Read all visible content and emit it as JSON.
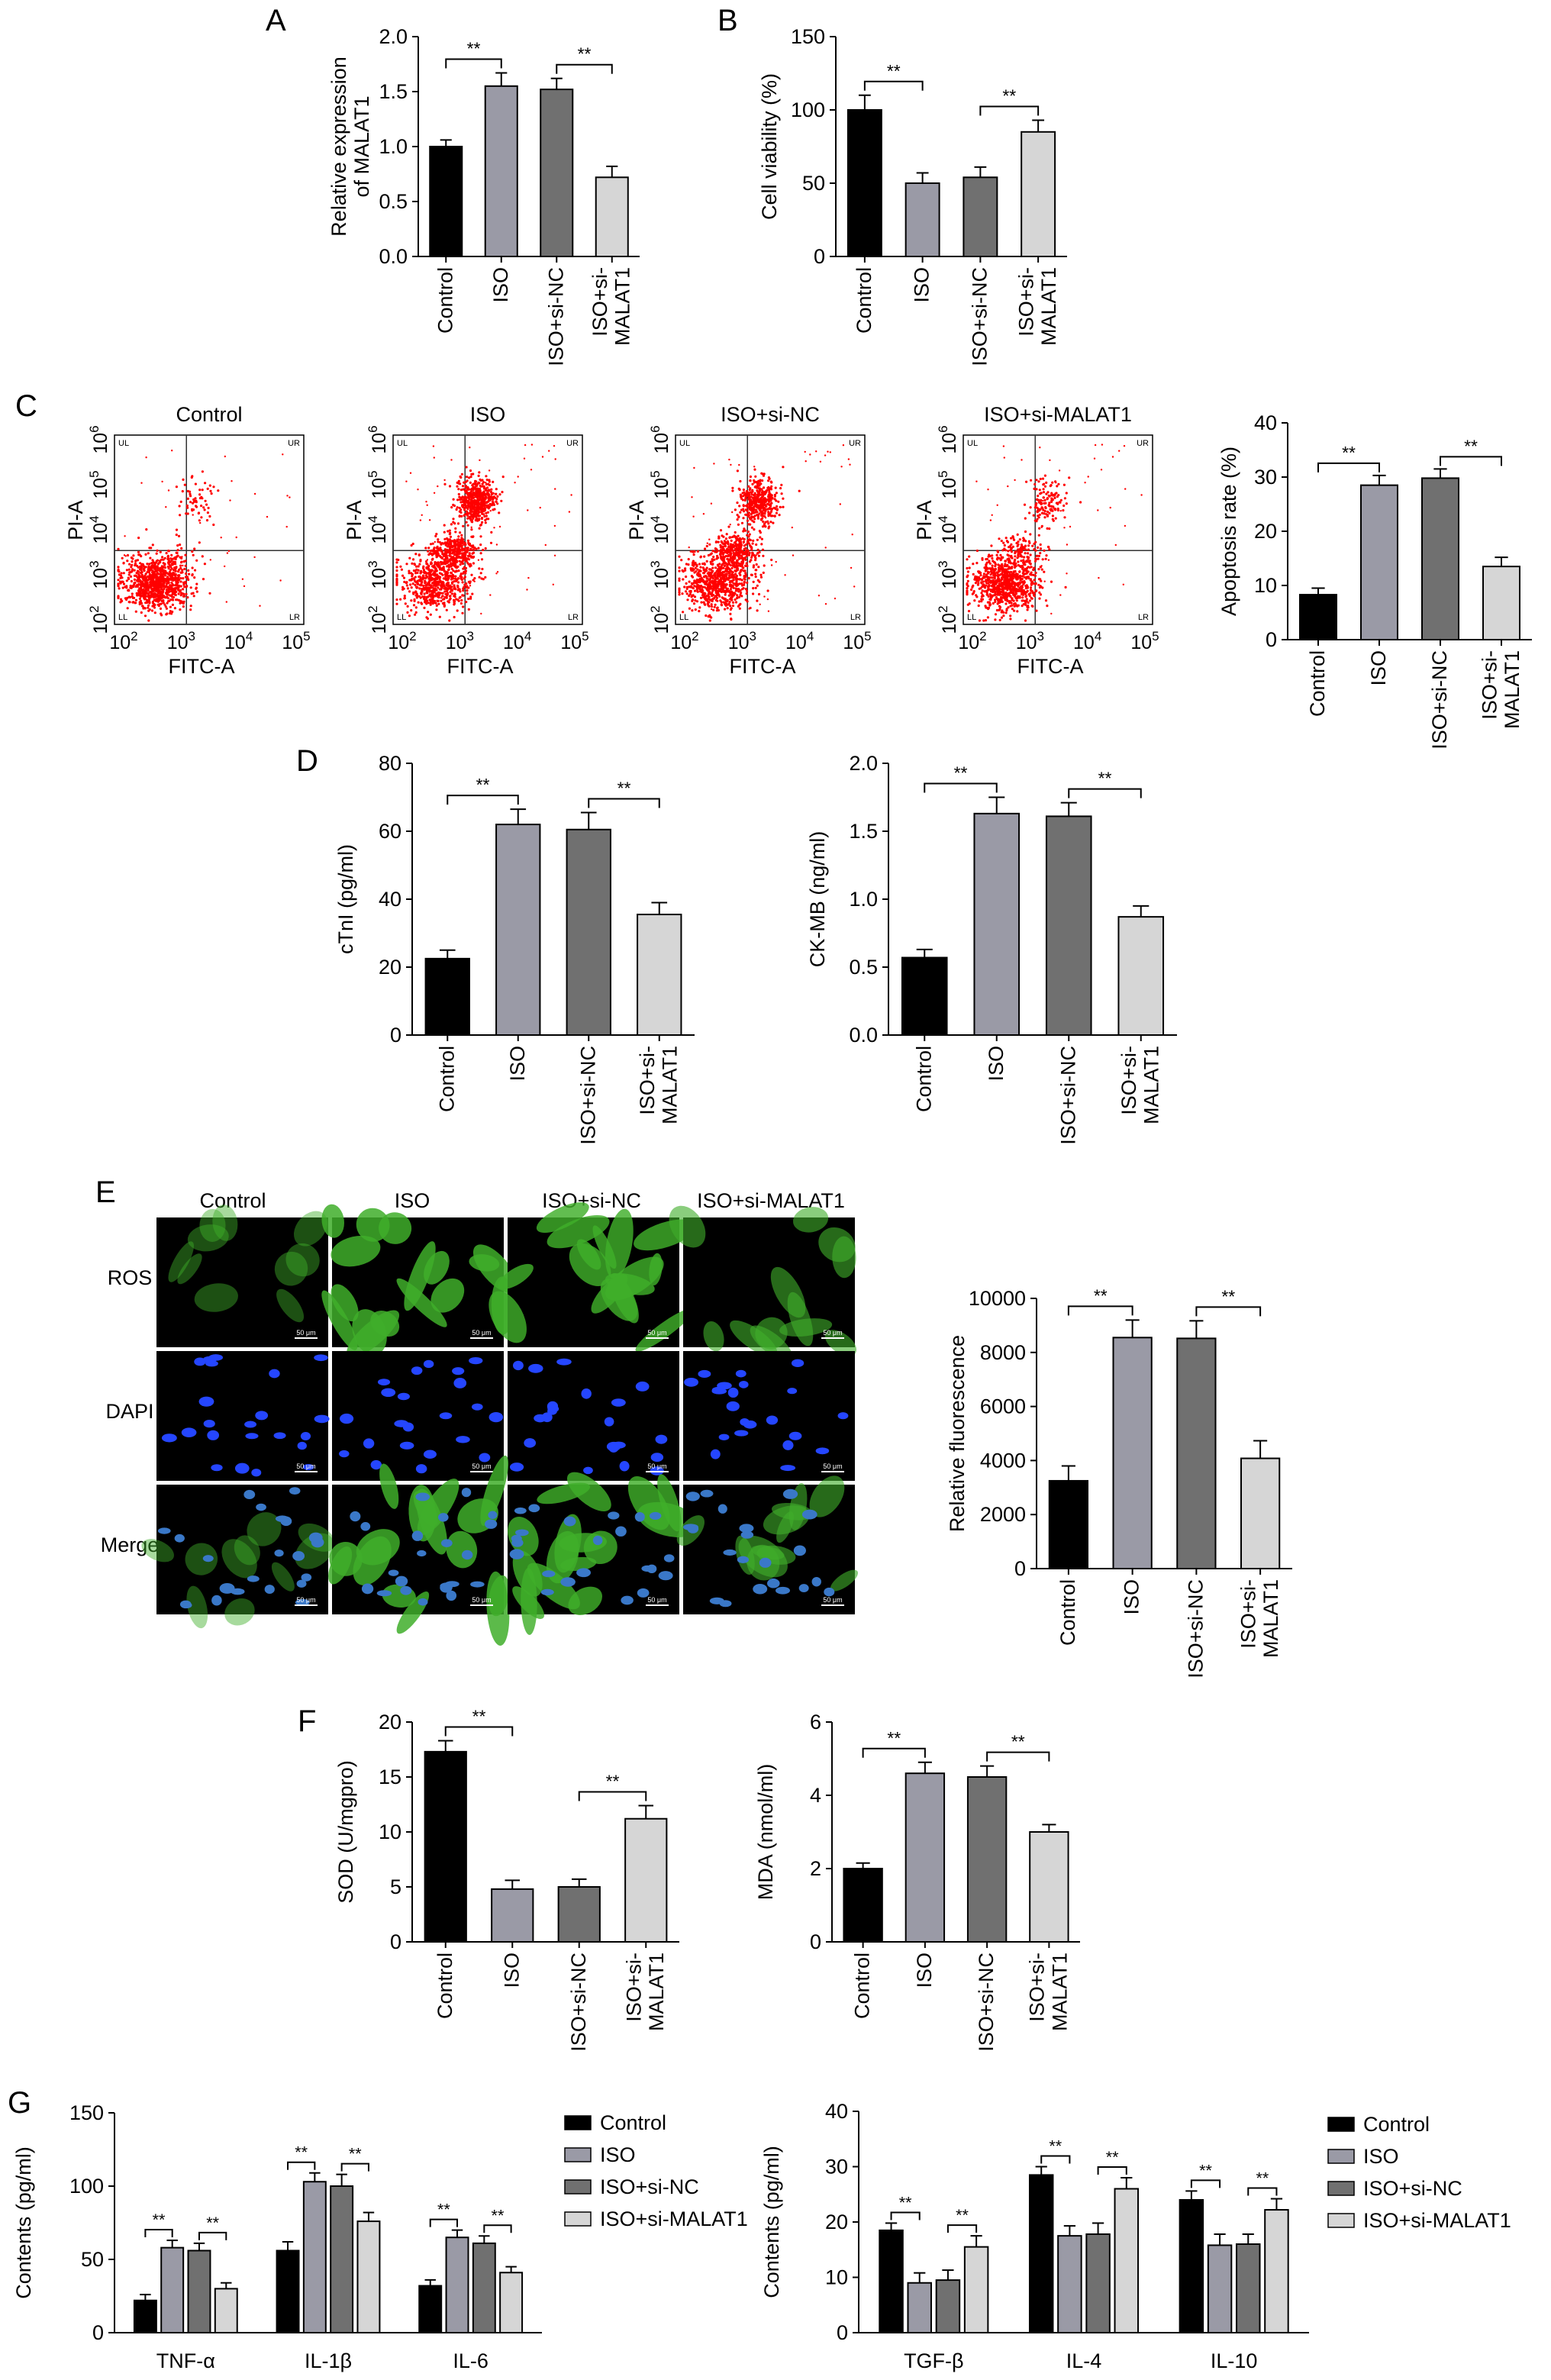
{
  "colors": {
    "control": "#000000",
    "iso": "#9a9aa6",
    "iso_si_nc": "#707070",
    "iso_si_malat1": "#d6d6d6",
    "dot": "#ff0000"
  },
  "labels": {
    "A": "A",
    "B": "B",
    "C": "C",
    "D": "D",
    "E": "E",
    "F": "F",
    "G": "G",
    "sig": "**",
    "groups": [
      "Control",
      "ISO",
      "ISO+si-NC",
      "ISO+si-MALAT1"
    ],
    "group_ticks": [
      "Control",
      "ISO",
      "ISO+si-NC",
      "ISO+si-\nMALAT1"
    ],
    "flow": {
      "x_label": "FITC-A",
      "y_label": "PI-A",
      "x_ticks": [
        "10^2",
        "10^3",
        "10^4",
        "10^5"
      ],
      "y_ticks": [
        "10^2",
        "10^3",
        "10^4",
        "10^5",
        "10^6"
      ],
      "quadrants": [
        "UL",
        "UR",
        "LL",
        "LR"
      ]
    },
    "microscopy": {
      "rows": [
        "ROS",
        "DAPI",
        "Merge"
      ],
      "scale": "50 μm"
    }
  },
  "chart_data": [
    {
      "id": "A",
      "type": "bar",
      "categories": [
        "Control",
        "ISO",
        "ISO+si-NC",
        "ISO+si-\nMALAT1"
      ],
      "values": [
        1.0,
        1.55,
        1.52,
        0.72
      ],
      "errors": [
        0.06,
        0.12,
        0.1,
        0.1
      ],
      "ylabel": "Relative expression\nof MALAT1",
      "ylim": [
        0,
        2.0
      ],
      "yticks": [
        "0.0",
        "0.5",
        "1.0",
        "1.5",
        "2.0"
      ],
      "sig_pairs": [
        [
          0,
          1
        ],
        [
          2,
          3
        ]
      ]
    },
    {
      "id": "B",
      "type": "bar",
      "categories": [
        "Control",
        "ISO",
        "ISO+si-NC",
        "ISO+si-\nMALAT1"
      ],
      "values": [
        100,
        50,
        54,
        85
      ],
      "errors": [
        10,
        7,
        7,
        8
      ],
      "ylabel": "Cell viability (%)",
      "ylim": [
        0,
        150
      ],
      "yticks": [
        "0",
        "50",
        "100",
        "150"
      ],
      "sig_pairs": [
        [
          0,
          1
        ],
        [
          2,
          3
        ]
      ]
    },
    {
      "id": "C",
      "type": "bar",
      "categories": [
        "Control",
        "ISO",
        "ISO+si-NC",
        "ISO+si-\nMALAT1"
      ],
      "values": [
        8.3,
        28.5,
        29.8,
        13.5
      ],
      "errors": [
        1.2,
        1.8,
        1.7,
        1.7
      ],
      "ylabel": "Apoptosis rate (%)",
      "ylim": [
        0,
        40
      ],
      "yticks": [
        "0",
        "10",
        "20",
        "30",
        "40"
      ],
      "sig_pairs": [
        [
          0,
          1
        ],
        [
          2,
          3
        ]
      ]
    },
    {
      "id": "D1",
      "type": "bar",
      "categories": [
        "Control",
        "ISO",
        "ISO+si-NC",
        "ISO+si-\nMALAT1"
      ],
      "values": [
        22.5,
        62,
        60.5,
        35.5
      ],
      "errors": [
        2.5,
        4.5,
        5,
        3.5
      ],
      "ylabel": "cTnI (pg/ml)",
      "ylim": [
        0,
        80
      ],
      "yticks": [
        "0",
        "20",
        "40",
        "60",
        "80"
      ],
      "sig_pairs": [
        [
          0,
          1
        ],
        [
          2,
          3
        ]
      ]
    },
    {
      "id": "D2",
      "type": "bar",
      "categories": [
        "Control",
        "ISO",
        "ISO+si-NC",
        "ISO+si-\nMALAT1"
      ],
      "values": [
        0.57,
        1.63,
        1.61,
        0.87
      ],
      "errors": [
        0.06,
        0.12,
        0.1,
        0.08
      ],
      "ylabel": "CK-MB (ng/ml)",
      "ylim": [
        0,
        2.0
      ],
      "yticks": [
        "0.0",
        "0.5",
        "1.0",
        "1.5",
        "2.0"
      ],
      "sig_pairs": [
        [
          0,
          1
        ],
        [
          2,
          3
        ]
      ]
    },
    {
      "id": "E",
      "type": "bar",
      "categories": [
        "Control",
        "ISO",
        "ISO+si-NC",
        "ISO+si-\nMALAT1"
      ],
      "values": [
        3250,
        8550,
        8520,
        4080
      ],
      "errors": [
        550,
        650,
        650,
        650
      ],
      "ylabel": "Relative fluorescence",
      "ylim": [
        0,
        10000
      ],
      "yticks": [
        "0",
        "2000",
        "4000",
        "6000",
        "8000",
        "10000"
      ],
      "sig_pairs": [
        [
          0,
          1
        ],
        [
          2,
          3
        ]
      ]
    },
    {
      "id": "F1",
      "type": "bar",
      "categories": [
        "Control",
        "ISO",
        "ISO+si-NC",
        "ISO+si-\nMALAT1"
      ],
      "values": [
        17.3,
        4.8,
        5.0,
        11.2
      ],
      "errors": [
        1.0,
        0.8,
        0.7,
        1.2
      ],
      "ylabel": "SOD (U/mgpro)",
      "ylim": [
        0,
        20
      ],
      "yticks": [
        "0",
        "5",
        "10",
        "15",
        "20"
      ],
      "sig_pairs": [
        [
          0,
          1
        ],
        [
          2,
          3
        ]
      ]
    },
    {
      "id": "F2",
      "type": "bar",
      "categories": [
        "Control",
        "ISO",
        "ISO+si-NC",
        "ISO+si-\nMALAT1"
      ],
      "values": [
        2.0,
        4.6,
        4.5,
        3.0
      ],
      "errors": [
        0.15,
        0.3,
        0.3,
        0.2
      ],
      "ylabel": "MDA (nmol/ml)",
      "ylim": [
        0,
        6
      ],
      "yticks": [
        "0",
        "2",
        "4",
        "6"
      ],
      "sig_pairs": [
        [
          0,
          1
        ],
        [
          2,
          3
        ]
      ]
    },
    {
      "id": "G1",
      "type": "grouped_bar",
      "categories": [
        "TNF-α",
        "IL-1β",
        "IL-6"
      ],
      "series": [
        {
          "name": "Control",
          "values": [
            22,
            56,
            32
          ],
          "errors": [
            4,
            6,
            4
          ]
        },
        {
          "name": "ISO",
          "values": [
            58,
            103,
            65
          ],
          "errors": [
            5,
            6,
            5
          ]
        },
        {
          "name": "ISO+si-NC",
          "values": [
            56,
            100,
            61
          ],
          "errors": [
            5,
            8,
            5
          ]
        },
        {
          "name": "ISO+si-MALAT1",
          "values": [
            30,
            76,
            41
          ],
          "errors": [
            4,
            6,
            4
          ]
        }
      ],
      "ylabel": "Contents (pg/ml)",
      "ylim": [
        0,
        150
      ],
      "yticks": [
        "0",
        "50",
        "100",
        "150"
      ],
      "sig_pairs": [
        [
          0,
          1
        ],
        [
          2,
          3
        ]
      ]
    },
    {
      "id": "G2",
      "type": "grouped_bar",
      "categories": [
        "TGF-β",
        "IL-4",
        "IL-10"
      ],
      "series": [
        {
          "name": "Control",
          "values": [
            18.5,
            28.5,
            24
          ],
          "errors": [
            1.3,
            1.5,
            1.6
          ]
        },
        {
          "name": "ISO",
          "values": [
            9,
            17.5,
            15.8
          ],
          "errors": [
            1.8,
            1.8,
            2
          ]
        },
        {
          "name": "ISO+si-NC",
          "values": [
            9.5,
            17.8,
            16
          ],
          "errors": [
            1.8,
            2,
            1.8
          ]
        },
        {
          "name": "ISO+si-MALAT1",
          "values": [
            15.5,
            26,
            22.2
          ],
          "errors": [
            2,
            2,
            2
          ]
        }
      ],
      "ylabel": "Contents (pg/ml)",
      "ylim": [
        0,
        40
      ],
      "yticks": [
        "0",
        "10",
        "20",
        "30",
        "40"
      ],
      "sig_pairs": [
        [
          0,
          1
        ],
        [
          2,
          3
        ]
      ]
    }
  ]
}
